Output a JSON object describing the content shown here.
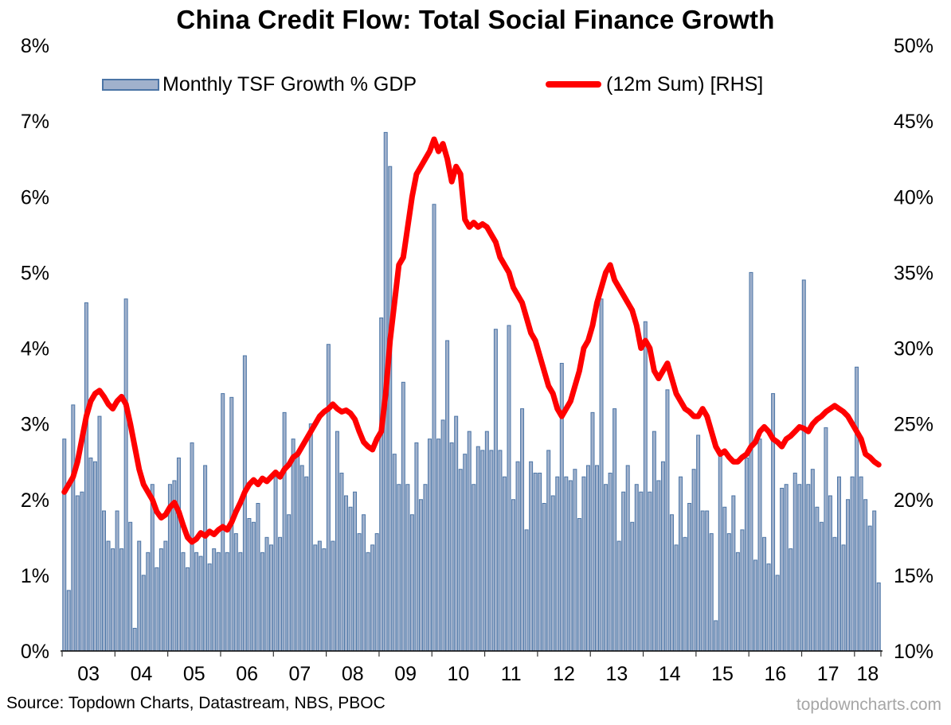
{
  "title": "China Credit Flow: Total Social Finance Growth",
  "legend": {
    "bar_label": "Monthly TSF Growth % GDP",
    "line_label": "(12m Sum) [RHS]"
  },
  "footer": {
    "source": "Source: Topdown Charts, Datastream, NBS, PBOC",
    "watermark": "topdowncharts.com"
  },
  "colors": {
    "bar_fill": "#A0B1CC",
    "bar_border": "#4C75A6",
    "line": "#FF0000",
    "axis_text": "#000000",
    "watermark": "#A6A6A6"
  },
  "chart_data": {
    "type": "combo-bar-line",
    "title": "China Credit Flow: Total Social Finance Growth",
    "x_start": "2003-01",
    "x_end": "2018-06",
    "x_tick_labels": [
      "03",
      "04",
      "05",
      "06",
      "07",
      "08",
      "09",
      "10",
      "11",
      "12",
      "13",
      "14",
      "15",
      "16",
      "17",
      "18"
    ],
    "months_per_year": [
      12,
      12,
      12,
      12,
      12,
      12,
      12,
      12,
      12,
      12,
      12,
      12,
      12,
      12,
      12,
      6
    ],
    "left_axis": {
      "min": 0,
      "max": 8,
      "ticks": [
        "0%",
        "1%",
        "2%",
        "3%",
        "4%",
        "5%",
        "6%",
        "7%",
        "8%"
      ]
    },
    "right_axis": {
      "min": 10,
      "max": 50,
      "ticks": [
        "10%",
        "15%",
        "20%",
        "25%",
        "30%",
        "35%",
        "40%",
        "45%",
        "50%"
      ]
    },
    "grid": false,
    "legend_position": "top",
    "series": [
      {
        "name": "Monthly TSF Growth % GDP",
        "type": "bar",
        "axis": "left",
        "values": [
          2.8,
          0.8,
          3.25,
          2.05,
          2.1,
          4.6,
          2.55,
          2.5,
          3.1,
          1.85,
          1.45,
          1.35,
          1.85,
          1.35,
          4.65,
          1.7,
          0.3,
          1.45,
          1.0,
          1.3,
          2.2,
          1.1,
          1.35,
          1.45,
          2.2,
          2.25,
          2.55,
          1.3,
          1.1,
          2.75,
          1.3,
          1.25,
          2.45,
          1.15,
          1.35,
          1.3,
          3.4,
          1.3,
          3.35,
          1.55,
          1.3,
          3.9,
          1.75,
          1.7,
          1.95,
          1.3,
          1.5,
          1.4,
          2.3,
          1.5,
          3.15,
          1.8,
          2.8,
          2.6,
          2.45,
          2.3,
          3.0,
          1.4,
          1.45,
          1.35,
          4.05,
          1.45,
          2.9,
          2.35,
          2.05,
          1.9,
          2.1,
          1.55,
          1.8,
          1.3,
          1.4,
          1.55,
          4.4,
          6.85,
          6.4,
          2.6,
          2.2,
          3.55,
          2.2,
          1.8,
          2.75,
          2.0,
          2.2,
          2.8,
          5.9,
          2.8,
          3.05,
          4.1,
          2.75,
          3.1,
          2.4,
          2.6,
          2.9,
          2.2,
          2.7,
          2.65,
          2.9,
          2.65,
          4.25,
          2.65,
          2.3,
          4.3,
          2.0,
          2.5,
          3.2,
          1.6,
          2.5,
          2.35,
          2.35,
          1.95,
          2.65,
          2.05,
          2.3,
          3.8,
          2.3,
          2.25,
          2.4,
          1.75,
          2.3,
          2.45,
          3.15,
          2.45,
          4.65,
          2.2,
          2.35,
          3.2,
          1.45,
          2.1,
          2.45,
          1.7,
          2.2,
          2.1,
          4.35,
          2.1,
          2.9,
          2.25,
          2.5,
          3.45,
          1.8,
          1.4,
          2.3,
          1.5,
          1.95,
          2.4,
          2.85,
          1.85,
          1.85,
          1.55,
          0.4,
          2.65,
          1.9,
          1.55,
          2.05,
          1.3,
          1.6,
          2.55,
          5.0,
          1.2,
          2.8,
          1.5,
          1.15,
          3.4,
          1.0,
          2.15,
          2.2,
          1.35,
          2.35,
          2.2,
          4.9,
          2.2,
          2.4,
          1.9,
          1.7,
          2.95,
          2.05,
          1.5,
          2.3,
          1.4,
          2.0,
          2.3,
          3.75,
          2.3,
          2.0,
          1.65,
          1.85,
          0.9
        ]
      },
      {
        "name": "(12m Sum) [RHS]",
        "type": "line",
        "axis": "right",
        "values": [
          20.5,
          21.0,
          21.5,
          22.5,
          24.0,
          25.5,
          26.5,
          27.0,
          27.2,
          26.8,
          26.3,
          26.0,
          26.5,
          26.8,
          26.3,
          25.0,
          23.5,
          22.0,
          21.0,
          20.5,
          20.0,
          19.2,
          18.8,
          19.0,
          19.5,
          19.8,
          19.2,
          18.3,
          17.5,
          17.2,
          17.4,
          17.8,
          17.6,
          17.9,
          17.7,
          18.0,
          18.2,
          18.0,
          18.5,
          19.2,
          19.8,
          20.5,
          21.0,
          21.3,
          21.0,
          21.4,
          21.2,
          21.5,
          21.8,
          21.5,
          22.0,
          22.3,
          22.8,
          23.0,
          23.5,
          24.0,
          24.5,
          25.0,
          25.5,
          25.8,
          26.0,
          26.3,
          26.0,
          25.8,
          25.9,
          25.7,
          25.3,
          24.5,
          23.8,
          23.5,
          23.3,
          24.0,
          24.5,
          27.0,
          30.5,
          33.0,
          35.5,
          36.0,
          38.0,
          40.0,
          41.5,
          42.0,
          42.5,
          43.0,
          43.8,
          43.0,
          43.5,
          42.5,
          41.0,
          42.0,
          41.5,
          38.5,
          38.0,
          38.3,
          38.0,
          38.2,
          38.0,
          37.5,
          37.0,
          36.0,
          35.5,
          35.0,
          34.0,
          33.5,
          33.0,
          32.0,
          31.0,
          30.5,
          29.5,
          28.5,
          27.5,
          27.0,
          26.0,
          25.5,
          26.0,
          26.5,
          27.5,
          28.5,
          30.0,
          30.5,
          31.5,
          33.0,
          34.0,
          35.0,
          35.5,
          34.5,
          34.0,
          33.5,
          33.0,
          32.5,
          31.5,
          30.0,
          30.5,
          30.0,
          28.5,
          28.0,
          28.5,
          29.0,
          28.0,
          27.0,
          26.5,
          26.0,
          25.8,
          25.5,
          25.5,
          26.0,
          25.5,
          24.5,
          23.5,
          23.0,
          23.2,
          22.8,
          22.5,
          22.5,
          22.8,
          23.0,
          23.5,
          23.8,
          24.5,
          24.8,
          24.5,
          24.0,
          23.8,
          23.5,
          24.0,
          24.2,
          24.5,
          24.8,
          24.7,
          24.5,
          25.0,
          25.3,
          25.5,
          25.8,
          26.0,
          26.2,
          26.0,
          25.8,
          25.5,
          25.0,
          24.5,
          24.0,
          23.0,
          22.8,
          22.5,
          22.3
        ]
      }
    ]
  }
}
